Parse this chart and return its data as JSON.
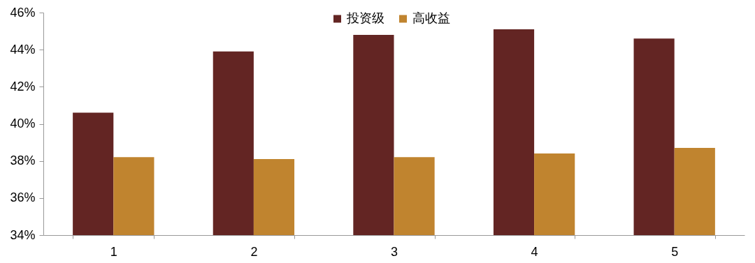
{
  "chart_data": {
    "type": "bar",
    "categories": [
      "1",
      "2",
      "3",
      "4",
      "5"
    ],
    "series": [
      {
        "name": "投资级",
        "color": "#632523",
        "values": [
          40.6,
          43.9,
          44.8,
          45.1,
          44.6
        ]
      },
      {
        "name": "高收益",
        "color": "#c0842f",
        "values": [
          38.2,
          38.1,
          38.2,
          38.4,
          38.7
        ]
      }
    ],
    "ylim": [
      34,
      46
    ],
    "yticks": [
      {
        "value": 34,
        "label": "34%"
      },
      {
        "value": 36,
        "label": "36%"
      },
      {
        "value": 38,
        "label": "38%"
      },
      {
        "value": 40,
        "label": "40%"
      },
      {
        "value": 42,
        "label": "42%"
      },
      {
        "value": 44,
        "label": "44%"
      },
      {
        "value": 46,
        "label": "46%"
      }
    ],
    "grid": false,
    "legend": "top"
  }
}
